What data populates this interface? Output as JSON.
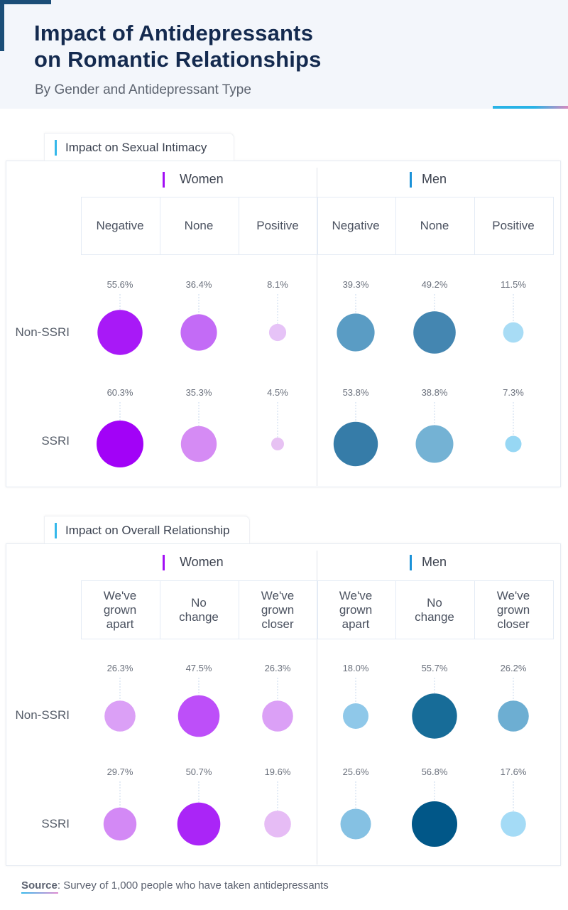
{
  "header": {
    "title_line1": "Impact of Antidepressants",
    "title_line2": "on Romantic Relationships",
    "subtitle": "By Gender and Antidepressant Type"
  },
  "source": {
    "label": "Source",
    "text": ": Survey of 1,000 people who have taken antidepressants"
  },
  "chart_data": [
    {
      "type": "bubble-matrix",
      "title": "Impact on Sexual Intimacy",
      "groups": [
        {
          "name": "Women",
          "color": "#a20ff5",
          "categories": [
            "Negative",
            "None",
            "Positive"
          ]
        },
        {
          "name": "Men",
          "color": "#1b92d8",
          "categories": [
            "Negative",
            "None",
            "Positive"
          ]
        }
      ],
      "rows": [
        {
          "name": "Non-SSRI",
          "values": [
            55.6,
            36.4,
            8.1,
            39.3,
            49.2,
            11.5
          ],
          "labels": [
            "55.6%",
            "36.4%",
            "8.1%",
            "39.3%",
            "49.2%",
            "11.5%"
          ]
        },
        {
          "name": "SSRI",
          "values": [
            60.3,
            35.3,
            4.5,
            53.8,
            38.8,
            7.3
          ],
          "labels": [
            "60.3%",
            "35.3%",
            "4.5%",
            "53.8%",
            "38.8%",
            "7.3%"
          ]
        }
      ],
      "colors": [
        [
          "#a819f7",
          "#c36bf6",
          "#e6c3f7",
          "#5a9cc4",
          "#4486b1",
          "#a8dcf5"
        ],
        [
          "#a202f7",
          "#d58bf4",
          "#e7c2f3",
          "#367ca8",
          "#74b2d4",
          "#97d7f4"
        ]
      ]
    },
    {
      "type": "bubble-matrix",
      "title": "Impact on Overall Relationship",
      "groups": [
        {
          "name": "Women",
          "color": "#a20ff5",
          "categories": [
            "We've grown apart",
            "No change",
            "We've grown closer"
          ]
        },
        {
          "name": "Men",
          "color": "#1b92d8",
          "categories": [
            "We've grown apart",
            "No change",
            "We've grown closer"
          ]
        }
      ],
      "rows": [
        {
          "name": "Non-SSRI",
          "values": [
            26.3,
            47.5,
            26.3,
            18.0,
            55.7,
            26.2
          ],
          "labels": [
            "26.3%",
            "47.5%",
            "26.3%",
            "18.0%",
            "55.7%",
            "26.2%"
          ]
        },
        {
          "name": "SSRI",
          "values": [
            29.7,
            50.7,
            19.6,
            25.6,
            56.8,
            17.6
          ],
          "labels": [
            "29.7%",
            "50.7%",
            "19.6%",
            "25.6%",
            "56.8%",
            "17.6%"
          ]
        }
      ],
      "colors": [
        [
          "#dba0f6",
          "#bd4ff9",
          "#dba0f6",
          "#8fc8e9",
          "#176c98",
          "#6daed2"
        ],
        [
          "#d389f5",
          "#aa25f7",
          "#e6bcf5",
          "#85c1e3",
          "#015788",
          "#a4dbf6"
        ]
      ]
    }
  ]
}
